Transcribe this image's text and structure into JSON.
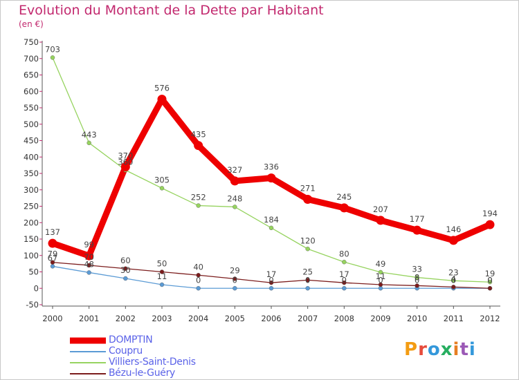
{
  "title": "Evolution du Montant de la Dette par Habitant",
  "subtitle": "(en €)",
  "brand": {
    "text": "Proxiti",
    "letter_colors": [
      "#f39c12",
      "#e74c3c",
      "#3498db",
      "#27ae60",
      "#e67e22",
      "#9b59b6",
      "#3498db"
    ]
  },
  "chart_data": {
    "type": "line",
    "x": [
      "2000",
      "2001",
      "2002",
      "2003",
      "2004",
      "2005",
      "2006",
      "2007",
      "2008",
      "2009",
      "2010",
      "2011",
      "2012"
    ],
    "ylim": [
      -50,
      750
    ],
    "yticks": [
      -50,
      0,
      50,
      100,
      150,
      200,
      250,
      300,
      350,
      400,
      450,
      500,
      550,
      600,
      650,
      700,
      750
    ],
    "grid": false,
    "legend_position": "bottom-left",
    "series": [
      {
        "name": "DOMPTIN",
        "color": "#ee0000",
        "width": 9,
        "marker_r": 6.5,
        "values": [
          137,
          99,
          370,
          576,
          435,
          327,
          336,
          271,
          245,
          207,
          177,
          146,
          194
        ],
        "labels": [
          "137",
          "99",
          "370",
          "576",
          "435",
          "327",
          "336",
          "271",
          "245",
          "207",
          "177",
          "146",
          "194"
        ]
      },
      {
        "name": "Coupru",
        "color": "#5b9bd5",
        "width": 1.3,
        "marker_r": 3,
        "values": [
          67,
          48,
          30,
          11,
          0,
          0,
          0,
          0,
          0,
          0,
          0,
          0,
          0
        ],
        "labels": [
          "67",
          "48",
          "30",
          "11",
          "0",
          "0",
          "0",
          "0",
          "0",
          "0",
          "0",
          "0",
          "0"
        ]
      },
      {
        "name": "Villiers-Saint-Denis",
        "color": "#96d35f",
        "width": 1.3,
        "marker_r": 3,
        "values": [
          703,
          443,
          360,
          305,
          252,
          248,
          184,
          120,
          80,
          49,
          33,
          23,
          19
        ],
        "labels": [
          "703",
          "443",
          "360",
          "305",
          "252",
          "248",
          "184",
          "120",
          "80",
          "49",
          "33",
          "23",
          "19"
        ]
      },
      {
        "name": "Bézu-le-Guéry",
        "color": "#7b1c1c",
        "width": 1.3,
        "marker_r": 3,
        "values": [
          79,
          70,
          60,
          50,
          40,
          29,
          17,
          25,
          17,
          11,
          8,
          4,
          0
        ],
        "labels": [
          "79",
          "70",
          "60",
          "50",
          "40",
          "29",
          "17",
          "25",
          "17",
          "11",
          "8",
          "4",
          "0"
        ]
      }
    ]
  }
}
